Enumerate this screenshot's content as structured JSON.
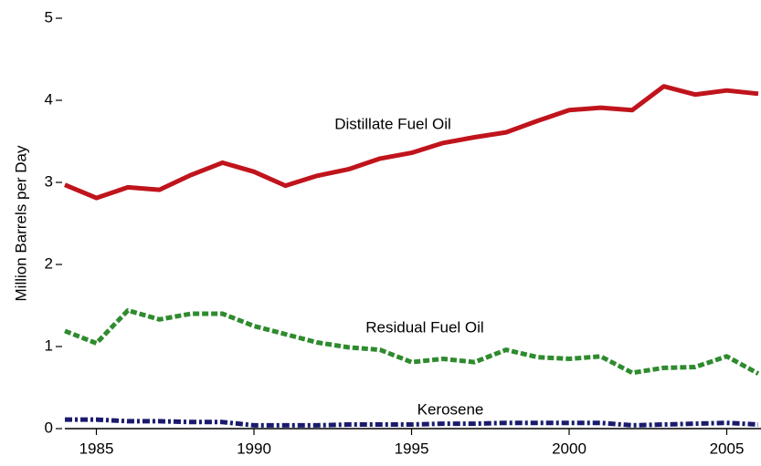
{
  "chart_data": {
    "type": "line",
    "y_label": "Million Barrels per Day",
    "x": [
      1984,
      1985,
      1986,
      1987,
      1988,
      1989,
      1990,
      1991,
      1992,
      1993,
      1994,
      1995,
      1996,
      1997,
      1998,
      1999,
      2000,
      2001,
      2002,
      2003,
      2004,
      2005,
      2006
    ],
    "series": [
      {
        "name": "Distillate Fuel Oil",
        "color": "#c0141c",
        "dash": "solid",
        "values": [
          2.97,
          2.81,
          2.94,
          2.91,
          3.09,
          3.24,
          3.13,
          2.96,
          3.08,
          3.16,
          3.29,
          3.36,
          3.48,
          3.55,
          3.61,
          3.75,
          3.88,
          3.91,
          3.88,
          4.17,
          4.07,
          4.12,
          4.08
        ]
      },
      {
        "name": "Residual Fuel Oil",
        "color": "#2e8b2e",
        "dash": "dashed",
        "values": [
          1.19,
          1.04,
          1.44,
          1.33,
          1.4,
          1.4,
          1.25,
          1.15,
          1.05,
          0.99,
          0.96,
          0.81,
          0.85,
          0.81,
          0.96,
          0.87,
          0.85,
          0.88,
          0.68,
          0.74,
          0.75,
          0.88,
          0.67
        ]
      },
      {
        "name": "Kerosene",
        "color": "#1a1a6e",
        "dash": "dashdot",
        "values": [
          0.11,
          0.11,
          0.09,
          0.09,
          0.08,
          0.08,
          0.04,
          0.04,
          0.04,
          0.05,
          0.05,
          0.05,
          0.06,
          0.06,
          0.07,
          0.07,
          0.07,
          0.07,
          0.04,
          0.05,
          0.06,
          0.07,
          0.05
        ]
      }
    ],
    "xlim": [
      1984,
      2006
    ],
    "xticks": [
      1985,
      1990,
      1995,
      2000,
      2005
    ],
    "ylim": [
      0,
      5
    ],
    "yticks": [
      0,
      1,
      2,
      3,
      4,
      5
    ],
    "grid": false
  }
}
